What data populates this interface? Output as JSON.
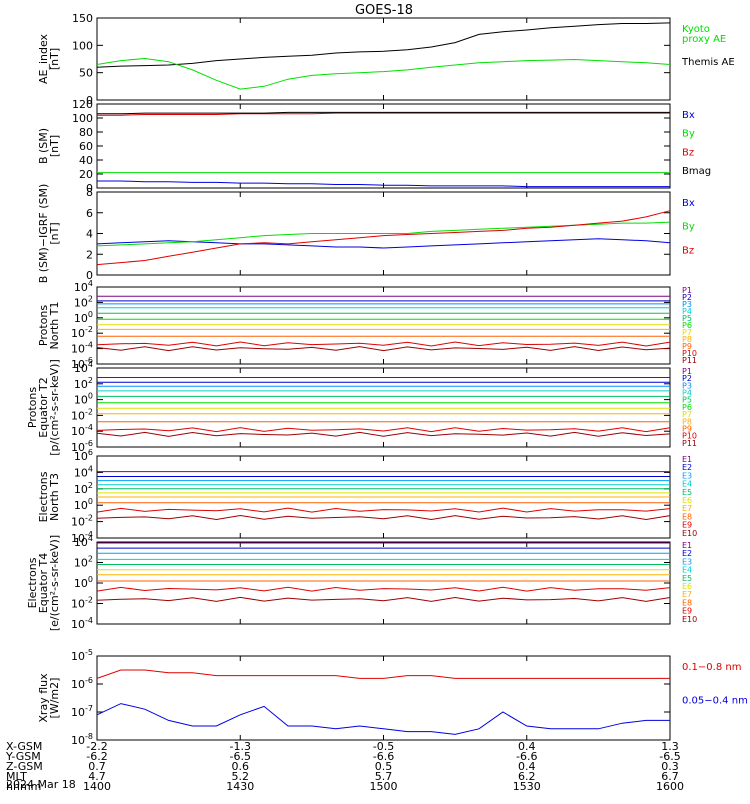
{
  "title": "GOES-18",
  "date_label": "2024 Mar 18",
  "colors": {
    "black": "#000000",
    "green": "#00e000",
    "red": "#e00000",
    "blue": "#0000e0",
    "prot": [
      "#000000",
      "#800080",
      "#0000d0",
      "#0090ff",
      "#00d0d0",
      "#00c060",
      "#00e000",
      "#e0e000",
      "#ffb000",
      "#ff6000",
      "#e00000",
      "#a00000"
    ],
    "elec": [
      "#000000",
      "#800080",
      "#0000d0",
      "#00a0ff",
      "#00d0d0",
      "#00c060",
      "#e0e000",
      "#ffb000",
      "#ff6000",
      "#e00000",
      "#a00000"
    ]
  },
  "ephemeris": {
    "labels": [
      "X-GSM",
      "Y-GSM",
      "Z-GSM",
      "MLT",
      "hhmm"
    ],
    "columns": [
      [
        "-2.2",
        "-6.2",
        "0.7",
        "4.7",
        "1400"
      ],
      [
        "-1.3",
        "-6.5",
        "0.6",
        "5.2",
        "1430"
      ],
      [
        "-0.5",
        "-6.6",
        "0.5",
        "5.7",
        "1500"
      ],
      [
        "0.4",
        "-6.6",
        "0.4",
        "6.2",
        "1530"
      ],
      [
        "1.3",
        "-6.5",
        "0.3",
        "6.7",
        "1600"
      ]
    ]
  },
  "chart_data": [
    {
      "type": "line",
      "id": "ae",
      "ylabel": "AE_index\n[nT]",
      "ylim": [
        0,
        150
      ],
      "yticks": [
        "0",
        "50",
        "100",
        "150"
      ],
      "legend": [
        "Kyoto\nproxy AE",
        "Themis AE"
      ],
      "x": [
        0,
        5,
        10,
        15,
        20,
        25,
        30,
        35,
        40,
        45,
        50,
        55,
        60,
        65,
        70,
        75,
        80,
        85,
        90,
        95,
        100,
        105,
        110,
        115,
        120
      ],
      "series": [
        {
          "name": "Themis AE",
          "color": "black",
          "values": [
            60,
            62,
            63,
            64,
            67,
            72,
            75,
            78,
            80,
            82,
            86,
            88,
            89,
            92,
            97,
            105,
            120,
            125,
            128,
            132,
            135,
            138,
            140,
            140,
            141
          ]
        },
        {
          "name": "Kyoto proxy AE",
          "color": "green",
          "values": [
            65,
            72,
            76,
            70,
            55,
            36,
            20,
            25,
            38,
            45,
            48,
            50,
            52,
            55,
            60,
            64,
            68,
            70,
            72,
            73,
            74,
            72,
            70,
            68,
            65
          ]
        }
      ]
    },
    {
      "type": "line",
      "id": "bsm",
      "ylabel": "B (SM)\n[nT]",
      "ylim": [
        0,
        120
      ],
      "yticks": [
        "0",
        "20",
        "40",
        "60",
        "80",
        "100",
        "120"
      ],
      "legend": [
        "Bx",
        "By",
        "Bz",
        "Bmag"
      ],
      "series": [
        {
          "name": "Bx",
          "color": "blue",
          "values": [
            10,
            10,
            9,
            9,
            8,
            8,
            7,
            7,
            6,
            6,
            5,
            5,
            4,
            4,
            3,
            3,
            3,
            3,
            2,
            2,
            2,
            2,
            2,
            2,
            2
          ]
        },
        {
          "name": "By",
          "color": "green",
          "values": [
            22,
            22,
            22,
            22,
            22,
            22,
            22,
            22,
            22,
            22,
            22,
            22,
            22,
            22,
            22,
            22,
            22,
            22,
            22,
            22,
            22,
            22,
            22,
            22,
            22
          ]
        },
        {
          "name": "Bz",
          "color": "red",
          "values": [
            104,
            104,
            105,
            105,
            105,
            105,
            106,
            106,
            106,
            106,
            107,
            107,
            107,
            107,
            107,
            107,
            107,
            107,
            107,
            107,
            107,
            107,
            107,
            107,
            107
          ]
        },
        {
          "name": "Bmag",
          "color": "black",
          "values": [
            106,
            106,
            107,
            107,
            107,
            107,
            107,
            107,
            108,
            108,
            108,
            108,
            108,
            108,
            108,
            108,
            108,
            108,
            108,
            108,
            108,
            108,
            108,
            108,
            108
          ]
        }
      ]
    },
    {
      "type": "line",
      "id": "bigrf",
      "ylabel": "B (SM)−IGRF (SM)\n[nT]",
      "ylim": [
        0,
        8
      ],
      "yticks": [
        "0",
        "2",
        "4",
        "6",
        "8"
      ],
      "legend": [
        "Bx",
        "By",
        "Bz"
      ],
      "series": [
        {
          "name": "Bx",
          "color": "blue",
          "values": [
            3.0,
            3.1,
            3.2,
            3.3,
            3.2,
            3.1,
            3.0,
            3.0,
            2.9,
            2.8,
            2.7,
            2.7,
            2.6,
            2.7,
            2.8,
            2.9,
            3.0,
            3.1,
            3.2,
            3.3,
            3.4,
            3.5,
            3.4,
            3.3,
            3.1
          ]
        },
        {
          "name": "By",
          "color": "green",
          "values": [
            2.8,
            2.9,
            3.0,
            3.1,
            3.2,
            3.4,
            3.6,
            3.8,
            3.9,
            4.0,
            4.0,
            4.0,
            4.0,
            4.0,
            4.2,
            4.3,
            4.4,
            4.5,
            4.6,
            4.7,
            4.8,
            4.9,
            5.0,
            5.0,
            5.1
          ]
        },
        {
          "name": "Bz",
          "color": "red",
          "values": [
            1.0,
            1.2,
            1.4,
            1.8,
            2.2,
            2.6,
            3.0,
            3.1,
            3.0,
            3.2,
            3.4,
            3.6,
            3.8,
            3.9,
            4.0,
            4.1,
            4.2,
            4.3,
            4.5,
            4.6,
            4.8,
            5.0,
            5.2,
            5.6,
            6.2
          ]
        }
      ]
    },
    {
      "type": "line",
      "id": "pn",
      "ylabel": "Protons\nNorth T1",
      "log": true,
      "ylim": [
        -6,
        4
      ],
      "yticks": [
        "10^-6",
        "10^-4",
        "10^-2",
        "10^0",
        "10^2",
        "10^4"
      ],
      "legend": [
        "P1",
        "P2",
        "P3",
        "P4",
        "P5",
        "P6",
        "P7",
        "P8",
        "P9",
        "P10",
        "P11"
      ],
      "levels": [
        2.8,
        2.2,
        1.8,
        1.3,
        0.6,
        -0.2,
        -0.9,
        -1.5,
        -2.4,
        -3.4,
        -4.0
      ]
    },
    {
      "type": "line",
      "id": "pe",
      "ylabel": "Protons\nEquator T2\n[p/(cm²-s-sr-keV)]",
      "log": true,
      "ylim": [
        -6,
        4
      ],
      "yticks": [
        "10^-6",
        "10^-4",
        "10^-2",
        "10^0",
        "10^2",
        "10^4"
      ],
      "legend": [
        "P1",
        "P2",
        "P3",
        "P4",
        "P5",
        "P6",
        "P7",
        "P8",
        "P9",
        "P10",
        "P11"
      ],
      "levels": [
        2.8,
        2.2,
        1.7,
        1.1,
        0.4,
        -0.4,
        -1.1,
        -1.8,
        -2.8,
        -3.8,
        -4.4
      ]
    },
    {
      "type": "line",
      "id": "en",
      "ylabel": "Electrons\nNorth T3",
      "log": true,
      "ylim": [
        -4,
        6
      ],
      "yticks": [
        "10^-4",
        "10^-2",
        "10^0",
        "10^2",
        "10^4",
        "10^6"
      ],
      "legend": [
        "E1",
        "E2",
        "E3",
        "E4",
        "E5",
        "E6",
        "E7",
        "E8",
        "E9",
        "E10"
      ],
      "levels": [
        4.1,
        3.5,
        3.0,
        2.5,
        2.0,
        1.5,
        1.0,
        0.3,
        -0.6,
        -1.5
      ]
    },
    {
      "type": "line",
      "id": "ee",
      "ylabel": "Electrons\nEquator T4\n[e/(cm²-s-sr-keV)]",
      "log": true,
      "ylim": [
        -4,
        4
      ],
      "yticks": [
        "10^-4",
        "10^-2",
        "10^0",
        "10^2",
        "10^4"
      ],
      "legend": [
        "E1",
        "E2",
        "E3",
        "E4",
        "E5",
        "E6",
        "E7",
        "E8",
        "E9",
        "E10"
      ],
      "levels": [
        3.9,
        3.4,
        2.9,
        2.3,
        1.8,
        1.3,
        0.8,
        0.2,
        -0.6,
        -1.6
      ]
    },
    {
      "type": "line",
      "id": "xray",
      "ylabel": "Xray flux\n[W/m2]",
      "log": true,
      "ylim": [
        -8,
        -5
      ],
      "yticks": [
        "10^-8",
        "10^-7",
        "10^-6",
        "10^-5"
      ],
      "legend": [
        "0.1−0.8 nm",
        "0.05−0.4 nm"
      ],
      "series": [
        {
          "name": "0.1−0.8 nm",
          "color": "red",
          "values": [
            -5.8,
            -5.5,
            -5.5,
            -5.6,
            -5.6,
            -5.7,
            -5.7,
            -5.7,
            -5.7,
            -5.7,
            -5.7,
            -5.8,
            -5.8,
            -5.7,
            -5.7,
            -5.8,
            -5.8,
            -5.8,
            -5.8,
            -5.8,
            -5.8,
            -5.8,
            -5.8,
            -5.8,
            -5.8
          ]
        },
        {
          "name": "0.05−0.4 nm",
          "color": "blue",
          "values": [
            -7.1,
            -6.7,
            -6.9,
            -7.3,
            -7.5,
            -7.5,
            -7.1,
            -6.8,
            -7.5,
            -7.5,
            -7.6,
            -7.5,
            -7.6,
            -7.7,
            -7.7,
            -7.8,
            -7.6,
            -7.0,
            -7.5,
            -7.6,
            -7.6,
            -7.6,
            -7.4,
            -7.3,
            -7.3
          ]
        }
      ]
    }
  ]
}
